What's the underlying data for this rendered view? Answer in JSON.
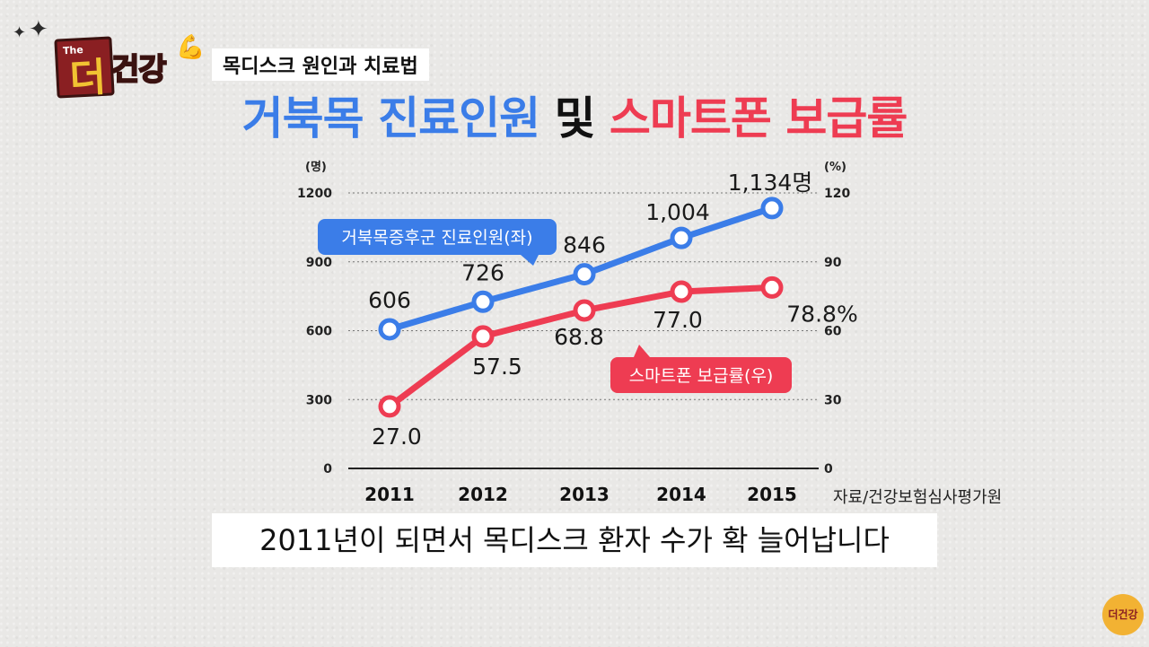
{
  "header": {
    "logo_prefix": "The",
    "logo_letter": "더",
    "logo_word": "건강",
    "subtitle": "목디스크 원인과 치료법",
    "title_part1": "거북목 진료인원",
    "title_part2": "및",
    "title_part3": "스마트폰 보급률"
  },
  "caption": "2011년이 되면서 목디스크 환자 수가 확 늘어납니다",
  "source": "자료/건강보험심사평가원",
  "corner_logo": "더건강",
  "colors": {
    "blue": "#3b7de8",
    "red": "#ee3c52",
    "logo_bg": "#8a1f22",
    "logo_text": "#f1c232"
  },
  "chart_data": {
    "type": "line",
    "categories": [
      "2011",
      "2012",
      "2013",
      "2014",
      "2015"
    ],
    "left_axis": {
      "unit": "(명)",
      "ticks": [
        "0",
        "300",
        "600",
        "900",
        "1200"
      ],
      "ylim": [
        0,
        1200
      ]
    },
    "right_axis": {
      "unit": "(%)",
      "ticks": [
        "0",
        "30",
        "60",
        "90",
        "120"
      ],
      "ylim": [
        0,
        120
      ]
    },
    "grid": true,
    "series": [
      {
        "name": "거북목증후군 진료인원(좌)",
        "axis": "left",
        "color": "#3b7de8",
        "values": [
          606,
          726,
          846,
          1004,
          1134
        ],
        "labels": [
          "606",
          "726",
          "846",
          "1,004",
          "1,134명"
        ]
      },
      {
        "name": "스마트폰 보급률(우)",
        "axis": "right",
        "color": "#ee3c52",
        "values": [
          27.0,
          57.5,
          68.8,
          77.0,
          78.8
        ],
        "labels": [
          "27.0",
          "57.5",
          "68.8",
          "77.0",
          "78.8%"
        ]
      }
    ]
  }
}
